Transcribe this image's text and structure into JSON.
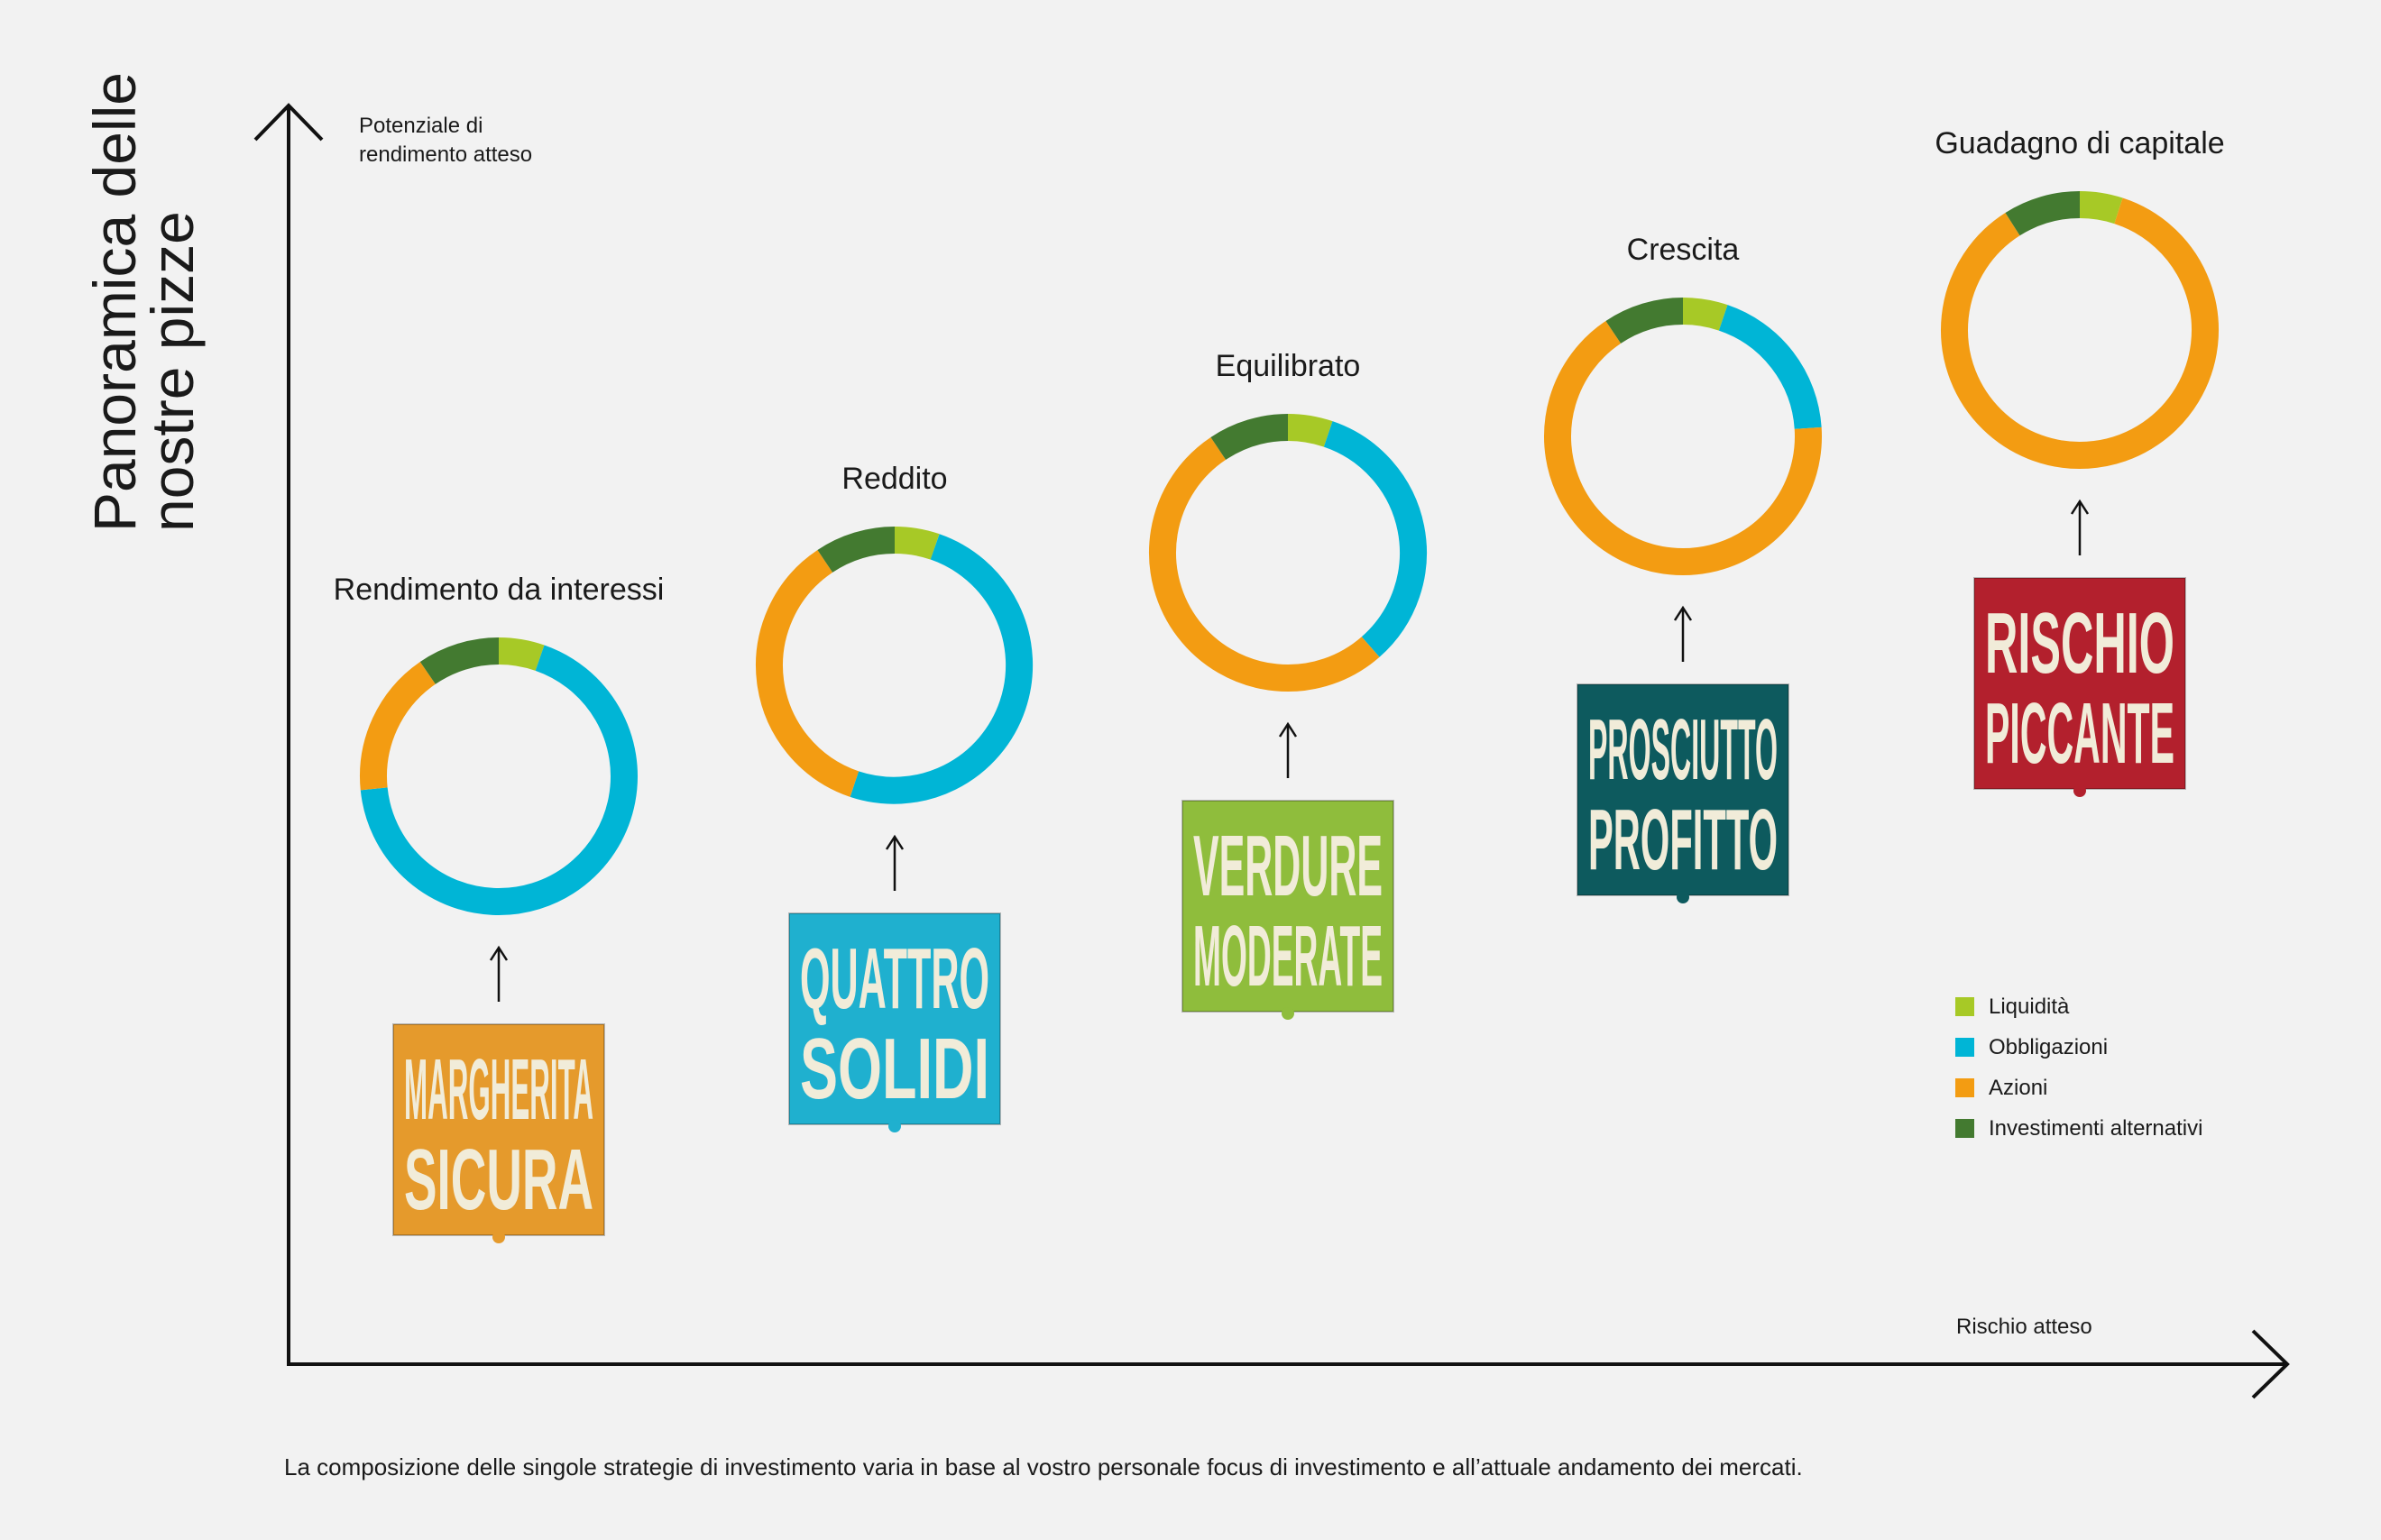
{
  "page": {
    "title_lines": [
      "Panoramica delle",
      "nostre pizze"
    ],
    "footnote": "La composizione delle singole strategie di investimento varia in base al vostro personale focus di investimento e all’attuale andamento dei mercati."
  },
  "chart_data": {
    "type": "pie",
    "donut": true,
    "title": "Panoramica delle nostre pizze",
    "ylabel": "Potenziale di rendimento atteso",
    "ylabel_lines": [
      "Potenziale di",
      "rendimento atteso"
    ],
    "xlabel": "Rischio atteso",
    "legend_position": "bottom-right",
    "categories": [
      "Liquidità",
      "Obbligazioni",
      "Azioni",
      "Investimenti alternativi"
    ],
    "colors": [
      "#a7c926",
      "#00b5d6",
      "#f39c12",
      "#437a30"
    ],
    "strategies": [
      {
        "name": "Rendimento da interessi",
        "values": [
          5,
          64,
          16,
          9
        ],
        "product": [
          "MARGHERITA",
          "SICURA"
        ],
        "product_color": "#e59a2c"
      },
      {
        "name": "Reddito",
        "values": [
          5,
          48,
          34,
          9
        ],
        "product": [
          "QUATTRO",
          "SOLIDI"
        ],
        "product_color": "#1fb0cf"
      },
      {
        "name": "Equilibrato",
        "values": [
          5,
          32,
          50,
          9
        ],
        "product": [
          "VERDURE",
          "MODERATE"
        ],
        "product_color": "#8fbd3c"
      },
      {
        "name": "Crescita",
        "values": [
          5,
          18,
          64,
          9
        ],
        "product": [
          "PROSCIUTTO",
          "PROFITTO"
        ],
        "product_color": "#0d5a5e"
      },
      {
        "name": "Guadagno di capitale",
        "values": [
          5,
          0,
          86,
          9
        ],
        "product": [
          "RISCHIO",
          "PICCANTE"
        ],
        "product_color": "#b3202d"
      }
    ]
  }
}
